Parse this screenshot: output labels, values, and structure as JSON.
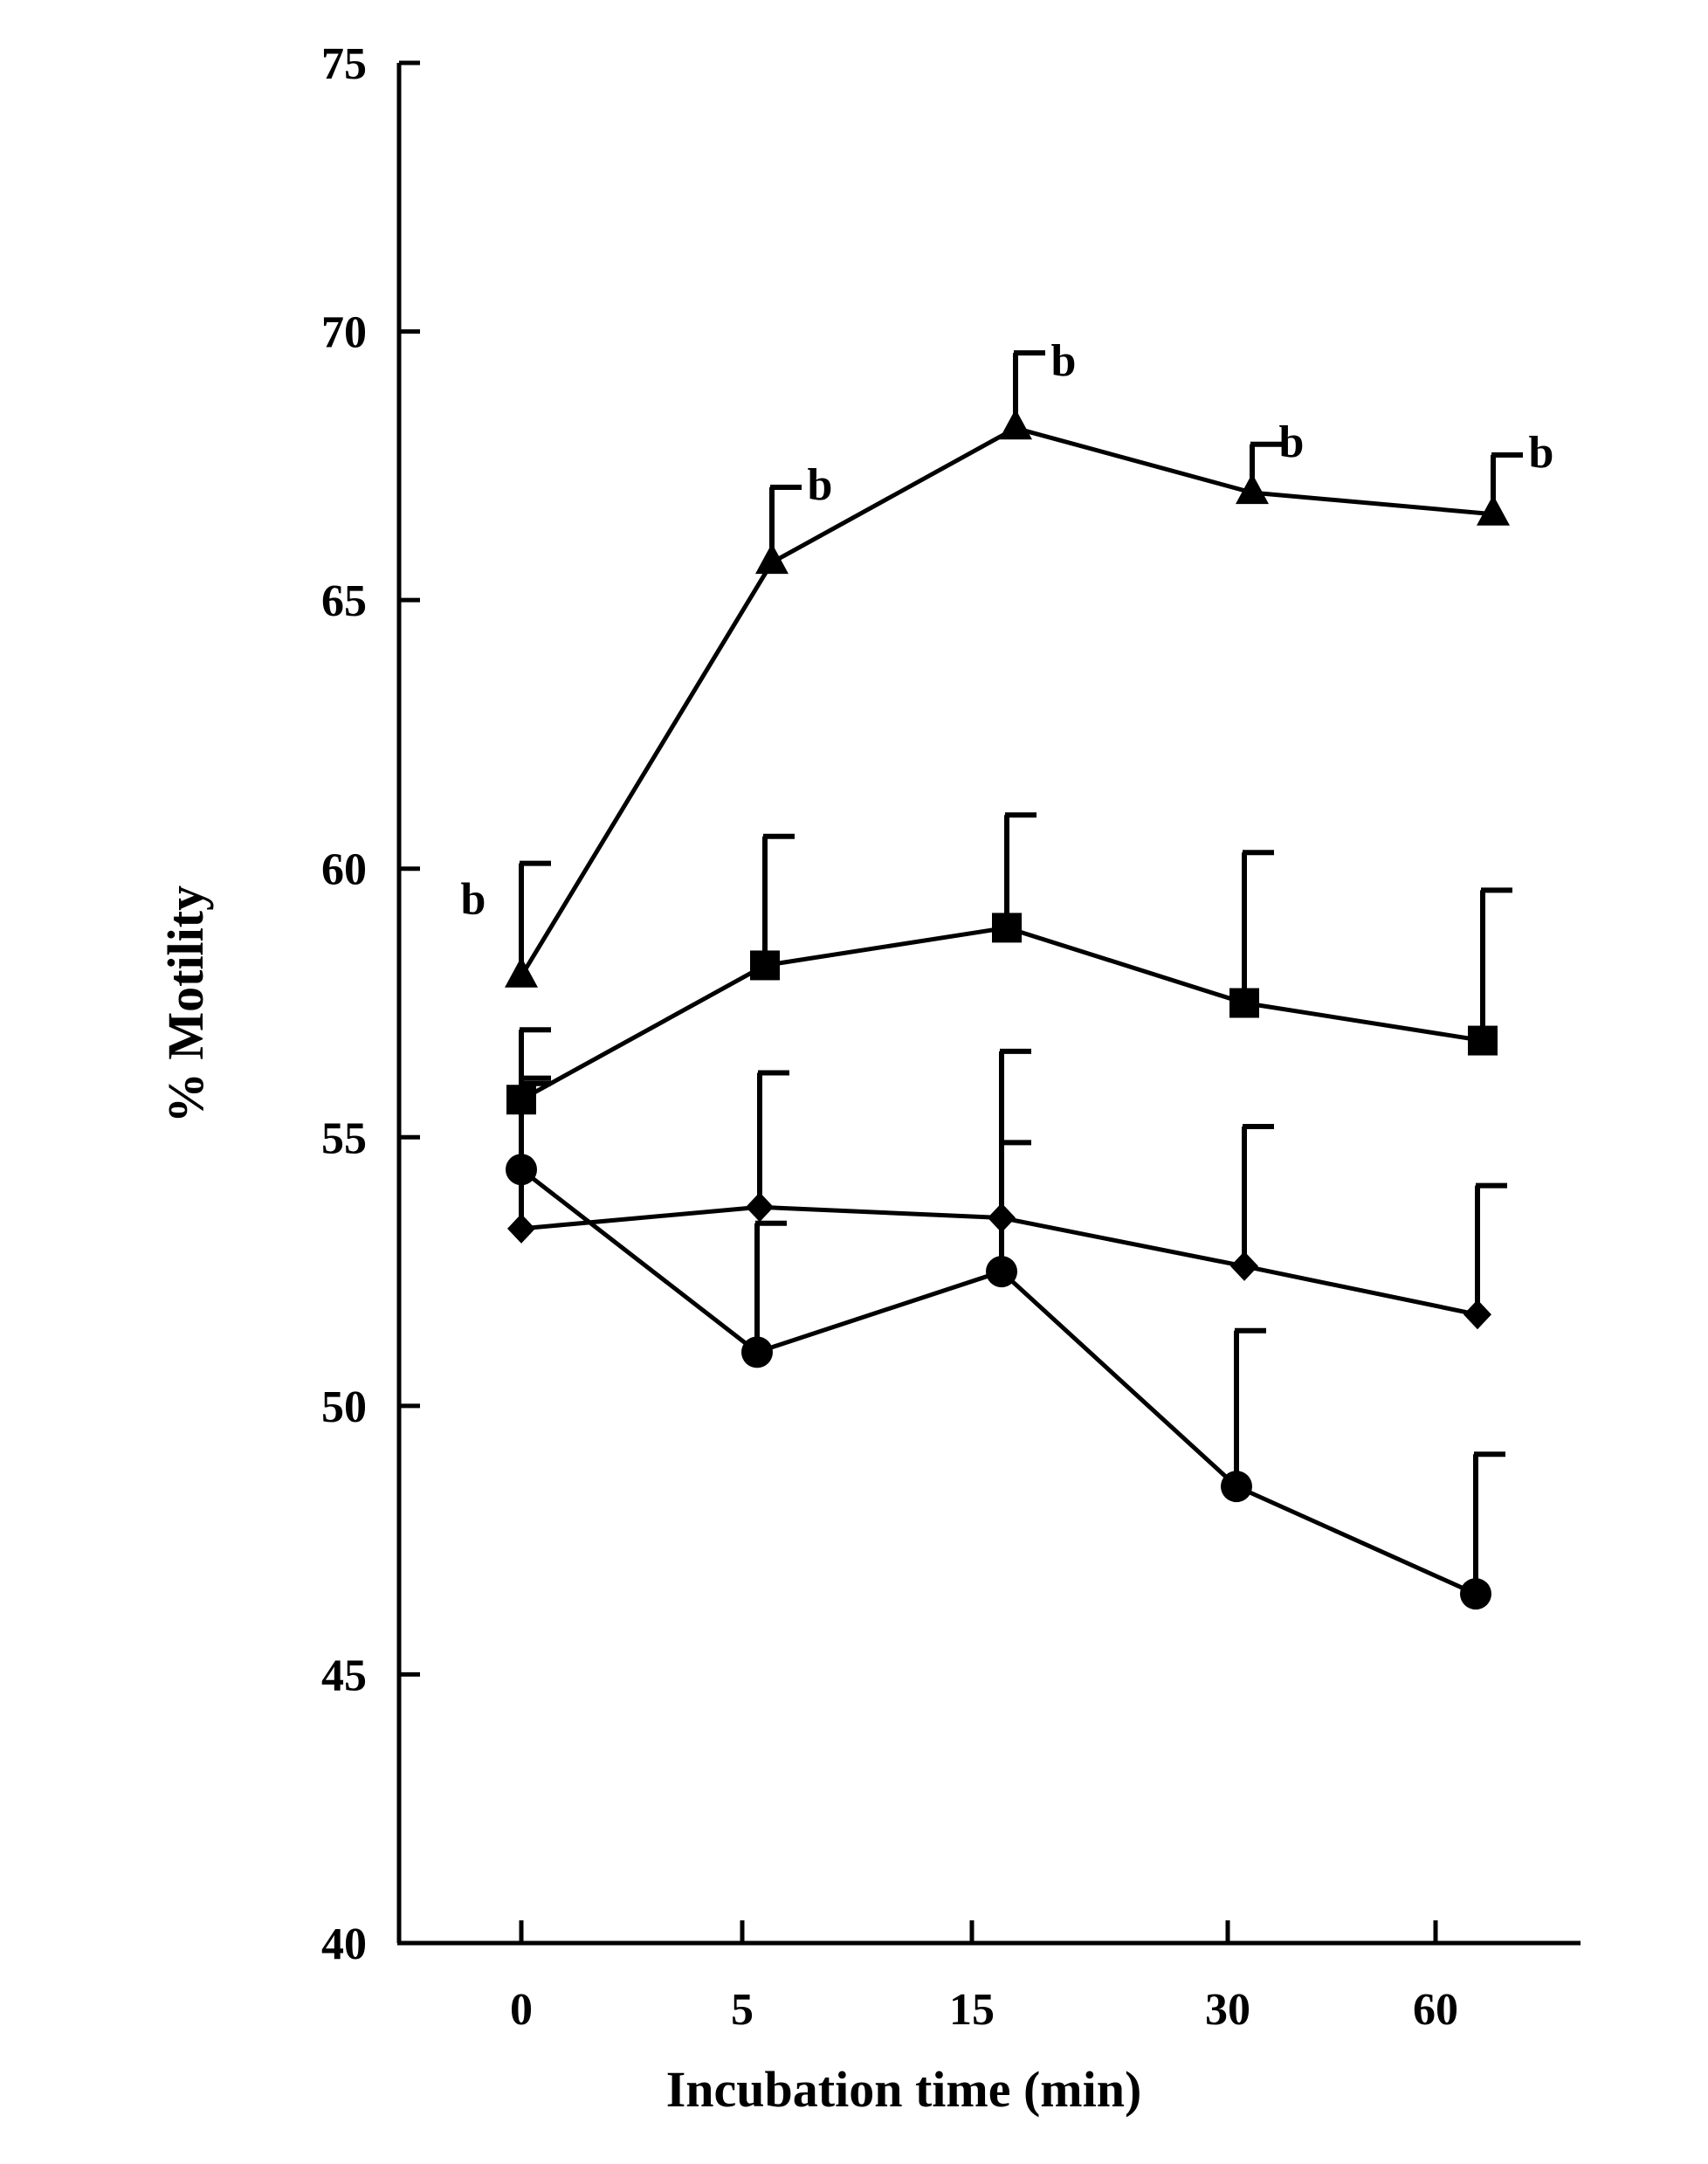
{
  "chart_data": {
    "type": "line",
    "title": "",
    "xlabel": "Incubation time (min)",
    "ylabel": "% Motility",
    "categories": [
      "0",
      "5",
      "15",
      "30",
      "60"
    ],
    "ylim": [
      40,
      75
    ],
    "yticks": [
      40,
      45,
      50,
      55,
      60,
      65,
      70,
      75
    ],
    "grid": false,
    "legend": "none",
    "series": [
      {
        "marker": "triangle",
        "values": [
          58.0,
          65.7,
          68.2,
          67.0,
          66.6
        ],
        "errors": [
          2.1,
          1.4,
          1.4,
          0.9,
          1.1
        ],
        "annotations": [
          "b",
          "b",
          "b",
          "b",
          "b"
        ]
      },
      {
        "marker": "square",
        "values": [
          55.7,
          58.2,
          58.9,
          57.5,
          56.8
        ],
        "errors": [
          1.3,
          2.4,
          2.1,
          2.8,
          2.8
        ],
        "annotations": [
          "",
          "",
          "",
          "",
          ""
        ]
      },
      {
        "marker": "diamond",
        "values": [
          53.3,
          53.7,
          53.5,
          52.6,
          51.7
        ],
        "errors": [
          2.8,
          2.5,
          3.1,
          2.6,
          2.4
        ],
        "annotations": [
          "",
          "",
          "",
          "",
          ""
        ]
      },
      {
        "marker": "circle",
        "values": [
          54.4,
          51.0,
          52.5,
          48.5,
          46.5
        ],
        "errors": [
          1.6,
          2.4,
          2.4,
          2.9,
          2.6
        ],
        "annotations": [
          "",
          "",
          "",
          "",
          ""
        ]
      }
    ]
  }
}
